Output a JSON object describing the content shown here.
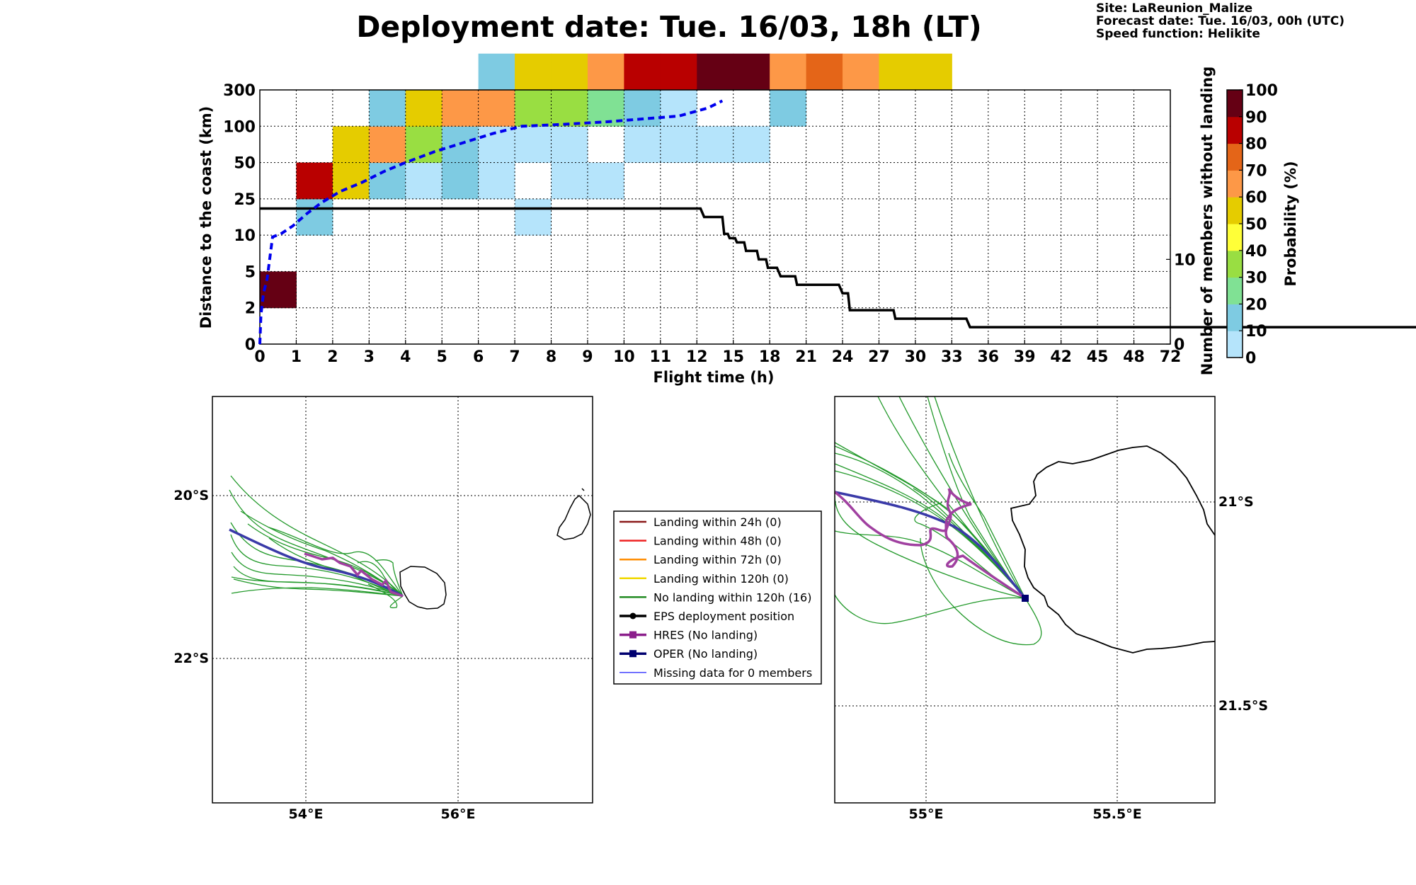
{
  "title": "Deployment date: Tue. 16/03, 18h (LT)",
  "info": {
    "site": "Site: LaReunion_Malize",
    "forecast": "Forecast date: Tue. 16/03, 00h (UTC)",
    "speed": "Speed function: Helikite"
  },
  "chart_data": [
    {
      "type": "heatmap",
      "xlabel": "Flight time (h)",
      "ylabel": "Distance to the coast (km)",
      "ylabel_right": "Number of members without landing",
      "x_ticks": [
        "0",
        "1",
        "2",
        "3",
        "4",
        "5",
        "6",
        "7",
        "8",
        "9",
        "10",
        "11",
        "12",
        "15",
        "18",
        "21",
        "24",
        "27",
        "30",
        "33",
        "36",
        "39",
        "42",
        "45",
        "48",
        "72"
      ],
      "y_ticks": [
        "0",
        "2",
        "5",
        "10",
        "25",
        "50",
        "100",
        "300"
      ],
      "right_ticks": [
        "0",
        "10"
      ],
      "grid": true,
      "colorbar": {
        "label": "Probability (%)",
        "ticks": [
          "0",
          "10",
          "20",
          "30",
          "40",
          "50",
          "60",
          "70",
          "80",
          "90",
          "100"
        ],
        "colors": [
          "#b5e4fb",
          "#7ecbe2",
          "#80e194",
          "#99de42",
          "#ffff38",
          "#e5cc00",
          "#fd9847",
          "#e46518",
          "#b90000",
          "#650014"
        ]
      },
      "cells": [
        {
          "x": 0,
          "y": 1,
          "p": 100
        },
        {
          "x": 1,
          "y": 3,
          "p": 10
        },
        {
          "x": 1,
          "y": 4,
          "p": 80
        },
        {
          "x": 2,
          "y": 4,
          "p": 50
        },
        {
          "x": 2,
          "y": 5,
          "p": 50
        },
        {
          "x": 3,
          "y": 4,
          "p": 10
        },
        {
          "x": 3,
          "y": 5,
          "p": 60
        },
        {
          "x": 3,
          "y": 6,
          "p": 10
        },
        {
          "x": 4,
          "y": 4,
          "p": 0
        },
        {
          "x": 4,
          "y": 5,
          "p": 30
        },
        {
          "x": 4,
          "y": 6,
          "p": 50
        },
        {
          "x": 5,
          "y": 4,
          "p": 10
        },
        {
          "x": 5,
          "y": 5,
          "p": 10
        },
        {
          "x": 5,
          "y": 6,
          "p": 60
        },
        {
          "x": 6,
          "y": 4,
          "p": 0
        },
        {
          "x": 6,
          "y": 5,
          "p": 0
        },
        {
          "x": 6,
          "y": 6,
          "p": 60
        },
        {
          "x": 6,
          "y": 7,
          "p": 10
        },
        {
          "x": 7,
          "y": 3,
          "p": 0
        },
        {
          "x": 7,
          "y": 5,
          "p": 0
        },
        {
          "x": 7,
          "y": 6,
          "p": 30
        },
        {
          "x": 7,
          "y": 7,
          "p": 50
        },
        {
          "x": 8,
          "y": 4,
          "p": 0
        },
        {
          "x": 8,
          "y": 5,
          "p": 0
        },
        {
          "x": 8,
          "y": 6,
          "p": 30
        },
        {
          "x": 8,
          "y": 7,
          "p": 50
        },
        {
          "x": 9,
          "y": 4,
          "p": 0
        },
        {
          "x": 9,
          "y": 6,
          "p": 20
        },
        {
          "x": 9,
          "y": 7,
          "p": 60
        },
        {
          "x": 10,
          "y": 5,
          "p": 0
        },
        {
          "x": 10,
          "y": 6,
          "p": 10
        },
        {
          "x": 10,
          "y": 7,
          "p": 80
        },
        {
          "x": 11,
          "y": 5,
          "p": 0
        },
        {
          "x": 11,
          "y": 6,
          "p": 0
        },
        {
          "x": 11,
          "y": 7,
          "p": 80
        },
        {
          "x": 12,
          "y": 5,
          "p": 0
        },
        {
          "x": 12,
          "y": 7,
          "p": 100
        },
        {
          "x": 13,
          "y": 5,
          "p": 0
        },
        {
          "x": 13,
          "y": 7,
          "p": 100
        },
        {
          "x": 14,
          "y": 6,
          "p": 10
        },
        {
          "x": 14,
          "y": 7,
          "p": 60
        },
        {
          "x": 15,
          "y": 7,
          "p": 70
        },
        {
          "x": 16,
          "y": 7,
          "p": 60
        },
        {
          "x": 17,
          "y": 7,
          "p": 50
        },
        {
          "x": 18,
          "y": 7,
          "p": 50
        }
      ],
      "mean_distance_line": [
        [
          0,
          0
        ],
        [
          0.03,
          0.8
        ],
        [
          0.1,
          1.4
        ],
        [
          0.2,
          1.8
        ],
        [
          0.35,
          2.95
        ],
        [
          0.6,
          3.05
        ],
        [
          0.9,
          3.25
        ],
        [
          1.3,
          3.6
        ],
        [
          1.7,
          3.9
        ],
        [
          2.2,
          4.2
        ],
        [
          2.8,
          4.45
        ],
        [
          3.4,
          4.75
        ],
        [
          4.0,
          5.0
        ],
        [
          4.8,
          5.3
        ],
        [
          5.6,
          5.55
        ],
        [
          6.4,
          5.8
        ],
        [
          7.2,
          6.0
        ],
        [
          8.3,
          6.05
        ],
        [
          9.5,
          6.12
        ],
        [
          10.5,
          6.2
        ],
        [
          11.5,
          6.28
        ],
        [
          12.3,
          6.5
        ],
        [
          12.7,
          6.7
        ]
      ],
      "members_without_landing_line": [
        [
          0,
          16
        ],
        [
          12.1,
          16
        ],
        [
          12.2,
          15
        ],
        [
          12.7,
          15
        ],
        [
          12.75,
          13
        ],
        [
          12.85,
          13
        ],
        [
          12.9,
          12.5
        ],
        [
          13.05,
          12.5
        ],
        [
          13.1,
          12
        ],
        [
          13.3,
          12
        ],
        [
          13.35,
          11
        ],
        [
          13.65,
          11
        ],
        [
          13.7,
          10
        ],
        [
          13.9,
          10
        ],
        [
          13.95,
          9
        ],
        [
          14.2,
          9
        ],
        [
          14.3,
          8
        ],
        [
          14.7,
          8
        ],
        [
          14.75,
          7
        ],
        [
          15.9,
          7
        ],
        [
          16.0,
          6
        ],
        [
          16.15,
          6
        ],
        [
          16.2,
          4
        ],
        [
          17.4,
          4
        ],
        [
          17.45,
          3
        ],
        [
          19.4,
          3
        ],
        [
          19.5,
          2
        ],
        [
          36,
          2
        ]
      ]
    },
    {
      "type": "map",
      "x_ticks": [
        "54°E",
        "56°E"
      ],
      "y_ticks": [
        "20°S",
        "22°S"
      ],
      "grid": true
    },
    {
      "type": "map",
      "x_ticks": [
        "55°E",
        "55.5°E"
      ],
      "y_ticks": [
        "21°S",
        "21.5°S"
      ],
      "grid": true
    }
  ],
  "legend": [
    {
      "label": "Landing within 24h (0)",
      "color": "#8b1a1a",
      "kind": "line"
    },
    {
      "label": "Landing within 48h (0)",
      "color": "#ee2222",
      "kind": "line"
    },
    {
      "label": "Landing within 72h (0)",
      "color": "#ff8c00",
      "kind": "line"
    },
    {
      "label": "Landing within 120h (0)",
      "color": "#f0d800",
      "kind": "line"
    },
    {
      "label": "No landing within 120h (16)",
      "color": "#228b22",
      "kind": "line"
    },
    {
      "label": "EPS deployment position",
      "color": "#000000",
      "kind": "dot"
    },
    {
      "label": "HRES (No landing)",
      "color": "#8b1e8b",
      "kind": "square"
    },
    {
      "label": "OPER (No landing)",
      "color": "#000070",
      "kind": "square"
    },
    {
      "label": "Missing data for 0 members",
      "color": "#3333ff",
      "kind": "thin"
    }
  ],
  "colors": {
    "mean_line": "#0000ee",
    "members_line": "#000000",
    "traj_green": "#22992a",
    "hres": "#a040a0",
    "oper": "#3a3aa8"
  }
}
